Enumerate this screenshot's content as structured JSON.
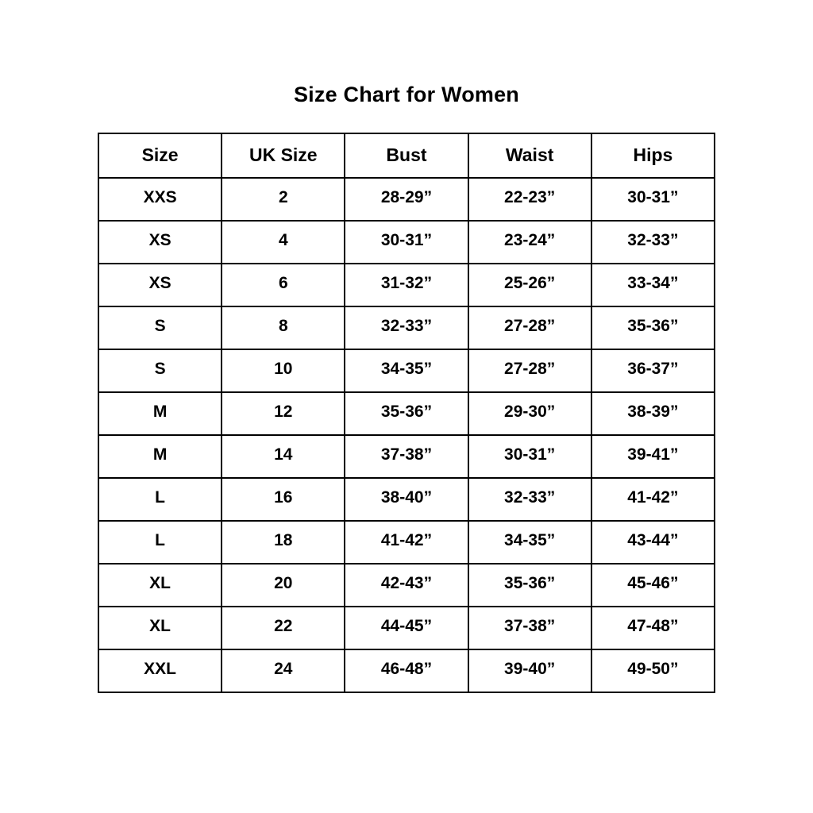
{
  "title": "Size Chart for Women",
  "colors": {
    "background": "#ffffff",
    "border": "#000000",
    "text": "#000000"
  },
  "chart_data": {
    "type": "table",
    "title": "Size Chart for Women",
    "columns": [
      "Size",
      "UK Size",
      "Bust",
      "Waist",
      "Hips"
    ],
    "rows": [
      [
        "XXS",
        "2",
        "28-29”",
        "22-23”",
        "30-31”"
      ],
      [
        "XS",
        "4",
        "30-31”",
        "23-24”",
        "32-33”"
      ],
      [
        "XS",
        "6",
        "31-32”",
        "25-26”",
        "33-34”"
      ],
      [
        "S",
        "8",
        "32-33”",
        "27-28”",
        "35-36”"
      ],
      [
        "S",
        "10",
        "34-35”",
        "27-28”",
        "36-37”"
      ],
      [
        "M",
        "12",
        "35-36”",
        "29-30”",
        "38-39”"
      ],
      [
        "M",
        "14",
        "37-38”",
        "30-31”",
        "39-41”"
      ],
      [
        "L",
        "16",
        "38-40”",
        "32-33”",
        "41-42”"
      ],
      [
        "L",
        "18",
        "41-42”",
        "34-35”",
        "43-44”"
      ],
      [
        "XL",
        "20",
        "42-43”",
        "35-36”",
        "45-46”"
      ],
      [
        "XL",
        "22",
        "44-45”",
        "37-38”",
        "47-48”"
      ],
      [
        "XXL",
        "24",
        "46-48”",
        "39-40”",
        "49-50”"
      ]
    ]
  }
}
